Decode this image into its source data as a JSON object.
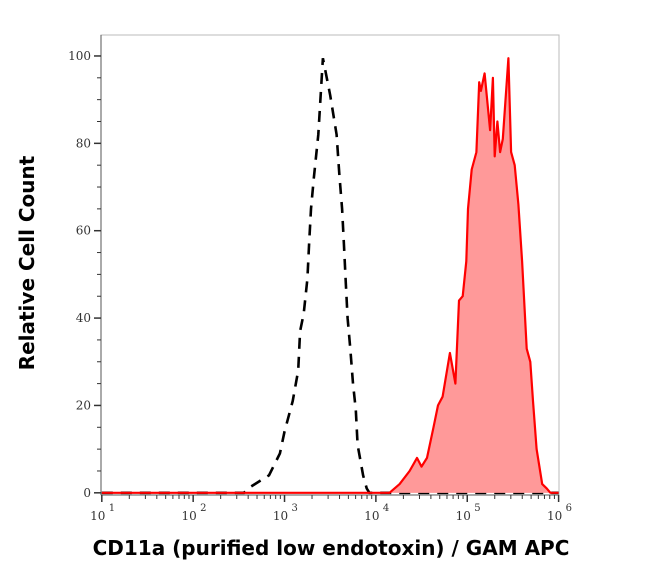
{
  "chart_data": {
    "type": "area",
    "title": "",
    "xlabel": "CD11a (purified low endotoxin) / GAM APC",
    "ylabel": "Relative Cell Count",
    "x_scale": "log",
    "xlim": [
      9.8,
      1010000
    ],
    "ylim": [
      -0.5,
      104.8
    ],
    "x_ticks": [
      {
        "base": "10",
        "exp": "1",
        "value": 10
      },
      {
        "base": "10",
        "exp": "2",
        "value": 100
      },
      {
        "base": "10",
        "exp": "3",
        "value": 1000
      },
      {
        "base": "10",
        "exp": "4",
        "value": 10000
      },
      {
        "base": "10",
        "exp": "5",
        "value": 100000
      },
      {
        "base": "10",
        "exp": "6",
        "value": 1000000
      }
    ],
    "y_ticks": [
      {
        "label": "0",
        "value": 0
      },
      {
        "label": "20",
        "value": 20
      },
      {
        "label": "40",
        "value": 40
      },
      {
        "label": "60",
        "value": 60
      },
      {
        "label": "80",
        "value": 80
      },
      {
        "label": "100",
        "value": 100
      }
    ],
    "grid": false,
    "legend": "none",
    "series": [
      {
        "style": "dashed-line",
        "color": "#000000",
        "points": [
          [
            10,
            0
          ],
          [
            360,
            0
          ],
          [
            398,
            1
          ],
          [
            676,
            4
          ],
          [
            891,
            9
          ],
          [
            1000,
            14
          ],
          [
            1230,
            21
          ],
          [
            1410,
            28
          ],
          [
            1480,
            37
          ],
          [
            1620,
            41
          ],
          [
            1780,
            49
          ],
          [
            1860,
            57
          ],
          [
            1950,
            65
          ],
          [
            2090,
            72
          ],
          [
            2340,
            82
          ],
          [
            2630,
            99.5
          ],
          [
            3160,
            91
          ],
          [
            3720,
            82
          ],
          [
            3980,
            73
          ],
          [
            4270,
            65
          ],
          [
            4470,
            57
          ],
          [
            4680,
            48
          ],
          [
            4900,
            40
          ],
          [
            5250,
            33
          ],
          [
            5620,
            25
          ],
          [
            6030,
            19
          ],
          [
            6310,
            11
          ],
          [
            7240,
            4
          ],
          [
            7940,
            1
          ],
          [
            8500,
            0
          ],
          [
            1000000,
            0
          ]
        ]
      },
      {
        "style": "filled",
        "color": "#ff0000",
        "fill": "#ff9999",
        "points": [
          [
            10,
            0
          ],
          [
            14100,
            0
          ],
          [
            18200,
            2
          ],
          [
            23400,
            5
          ],
          [
            28200,
            8
          ],
          [
            31600,
            6
          ],
          [
            36300,
            8
          ],
          [
            42700,
            15
          ],
          [
            47900,
            20
          ],
          [
            53700,
            22
          ],
          [
            64600,
            32
          ],
          [
            74100,
            25
          ],
          [
            81300,
            44
          ],
          [
            89100,
            45
          ],
          [
            97700,
            53
          ],
          [
            102000,
            65
          ],
          [
            112000,
            74
          ],
          [
            126000,
            78
          ],
          [
            135000,
            94
          ],
          [
            141000,
            92
          ],
          [
            155000,
            96
          ],
          [
            178000,
            83
          ],
          [
            191000,
            95
          ],
          [
            200000,
            77
          ],
          [
            214000,
            85
          ],
          [
            229000,
            78
          ],
          [
            245000,
            81
          ],
          [
            282000,
            99.5
          ],
          [
            302000,
            78
          ],
          [
            331000,
            75
          ],
          [
            363000,
            66
          ],
          [
            398000,
            53
          ],
          [
            447000,
            33
          ],
          [
            490000,
            30
          ],
          [
            525000,
            21
          ],
          [
            575000,
            10
          ],
          [
            661000,
            2
          ],
          [
            741000,
            1
          ],
          [
            813000,
            0
          ],
          [
            1000000,
            0
          ]
        ]
      }
    ]
  }
}
